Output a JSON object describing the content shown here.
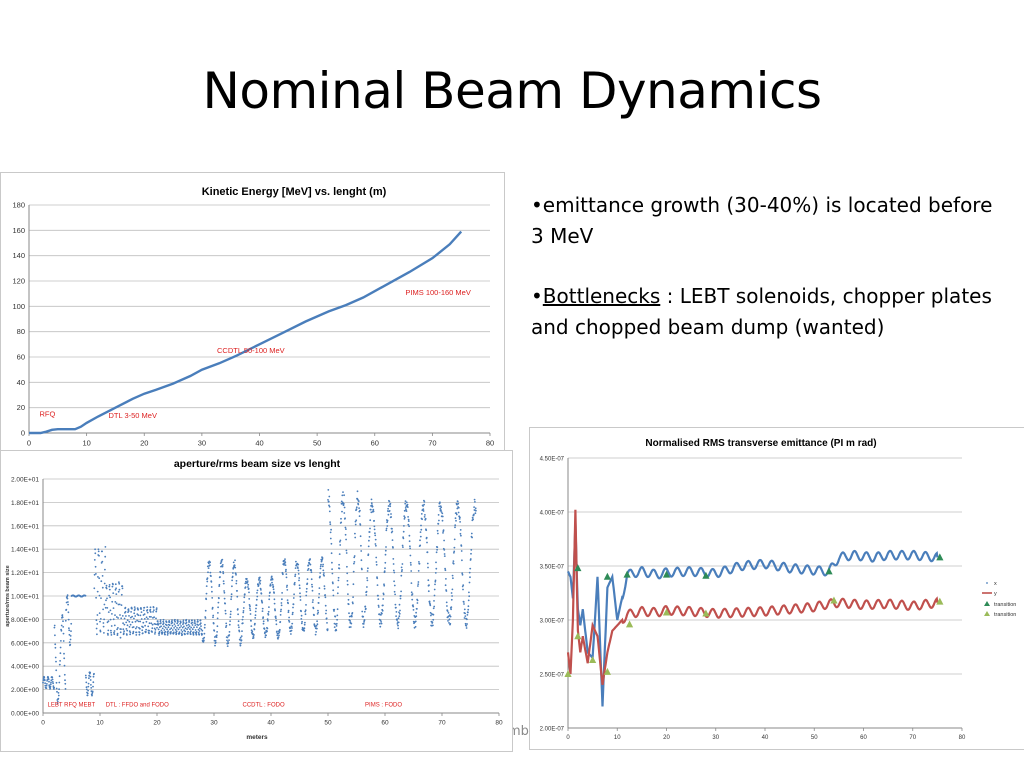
{
  "slide": {
    "title": "Nominal Beam Dynamics",
    "bullet1": "•emittance growth (30-40%) is  located before 3 MeV",
    "bullet2_prefix": "•",
    "bullet2_link": "Bottlenecks",
    "bullet2_rest": " : LEBT solenoids, chopper plates and chopped beam dump (wanted)",
    "footer_fragment": "mb"
  },
  "chart_data": [
    {
      "id": "energy",
      "type": "line",
      "title": "Kinetic Energy [MeV] vs. lenght (m)",
      "xlabel": "",
      "ylabel": "",
      "xlim": [
        0,
        80
      ],
      "ylim": [
        0,
        180
      ],
      "xticks": [
        0,
        10,
        20,
        30,
        40,
        50,
        60,
        70,
        80
      ],
      "yticks": [
        0,
        20,
        40,
        60,
        80,
        100,
        120,
        140,
        160,
        180
      ],
      "grid": "horizontal",
      "color": "#4a7ebb",
      "series": [
        {
          "x": [
            0,
            2,
            3,
            4,
            5,
            6,
            7,
            8,
            9,
            10,
            12,
            15,
            18,
            20,
            22,
            25,
            28,
            30,
            33,
            36,
            40,
            44,
            48,
            52,
            55,
            58,
            62,
            66,
            70,
            73,
            75
          ],
          "y": [
            0,
            0,
            1,
            2.5,
            3,
            3,
            3,
            3,
            5,
            8,
            13,
            20,
            27,
            31,
            34,
            39,
            45,
            50,
            55,
            61,
            70,
            79,
            88,
            96,
            101,
            107,
            117,
            127,
            138,
            149,
            159
          ]
        }
      ],
      "annotations": [
        {
          "text": "RFQ",
          "x": 3.2,
          "y": 13
        },
        {
          "text": "DTL 3-50 MeV",
          "x": 18,
          "y": 12
        },
        {
          "text": "CCDTL 50-100 MeV",
          "x": 38.5,
          "y": 63
        },
        {
          "text": "PIMS 100-160 MeV",
          "x": 71,
          "y": 109
        }
      ]
    },
    {
      "id": "aperture",
      "type": "scatter",
      "title": "aperture/rms beam size vs lenght",
      "xlabel": "meters",
      "ylabel": "aperture/rms beam size",
      "xlim": [
        0,
        80
      ],
      "ylim": [
        0,
        20
      ],
      "xticks": [
        0,
        10,
        20,
        30,
        40,
        50,
        60,
        70,
        80
      ],
      "yticks": [
        "0.00E+00",
        "2.00E+00",
        "4.00E+00",
        "6.00E+00",
        "8.00E+00",
        "1.00E+01",
        "1.20E+01",
        "1.40E+01",
        "1.60E+01",
        "1.80E+01",
        "2.00E+01"
      ],
      "grid": "horizontal",
      "color": "#4a7ebb",
      "segments": [
        {
          "x0": 0,
          "x1": 2,
          "base": 2.6,
          "amp": 0.5,
          "period": 0.7
        },
        {
          "x0": 2,
          "x1": 4,
          "base": 4.5,
          "amp": 3.5,
          "period": 1.5
        },
        {
          "x0": 4,
          "x1": 5,
          "base": 8,
          "amp": 2,
          "period": 1.0
        },
        {
          "x0": 5,
          "x1": 7.5,
          "base": 10,
          "amp": 0.05,
          "period": 1.0
        },
        {
          "x0": 7.5,
          "x1": 9,
          "base": 2.5,
          "amp": 1.0,
          "period": 0.8
        },
        {
          "x0": 9,
          "x1": 11,
          "base": 10.5,
          "amp": 3.5,
          "period": 0.6
        },
        {
          "x0": 11,
          "x1": 14,
          "base": 8.8,
          "amp": 2.2,
          "period": 0.55
        },
        {
          "x0": 14,
          "x1": 20,
          "base": 7.9,
          "amp": 1.1,
          "period": 0.55
        },
        {
          "x0": 20,
          "x1": 28,
          "base": 7.3,
          "amp": 0.6,
          "period": 0.5
        },
        {
          "x0": 28,
          "x1": 35,
          "base": 9.5,
          "amp": 3.4,
          "period": 2.2
        },
        {
          "x0": 35,
          "x1": 42,
          "base": 9.0,
          "amp": 2.4,
          "period": 2.2
        },
        {
          "x0": 42,
          "x1": 50,
          "base": 10.0,
          "amp": 3.0,
          "period": 2.2
        },
        {
          "x0": 50,
          "x1": 56,
          "base": 13.0,
          "amp": 5.5,
          "period": 2.6
        },
        {
          "x0": 56,
          "x1": 76,
          "base": 12.8,
          "amp": 5.0,
          "period": 3.0
        }
      ],
      "annotations": [
        {
          "text": "LEBT RFQ MEBT",
          "x": 0.8,
          "y": 0.4
        },
        {
          "text": "DTL : FFDO and FODO",
          "x": 11,
          "y": 0.4
        },
        {
          "text": "CCDTL : FODO",
          "x": 35,
          "y": 0.4
        },
        {
          "text": "PIMS : FODO",
          "x": 56.5,
          "y": 0.4
        }
      ]
    },
    {
      "id": "emittance",
      "type": "line",
      "title": "Normalised RMS transverse emittance (PI m rad)",
      "xlabel": "",
      "ylabel": "",
      "xlim": [
        0,
        80
      ],
      "ylim": [
        2e-07,
        4.5e-07
      ],
      "xticks": [
        0,
        10,
        20,
        30,
        40,
        50,
        60,
        70,
        80
      ],
      "yticks": [
        "2.00E-07",
        "2.50E-07",
        "3.00E-07",
        "3.50E-07",
        "4.00E-07",
        "4.50E-07"
      ],
      "grid": "horizontal",
      "legend_position": "right",
      "series": [
        {
          "name": "x",
          "color": "#4a7ebb",
          "x": [
            0,
            0.5,
            1,
            1.5,
            2,
            2.5,
            3,
            4,
            5,
            6,
            7,
            8,
            9,
            10,
            12,
            15,
            18,
            20,
            25,
            30,
            35,
            40,
            45,
            50,
            53,
            55,
            58,
            62,
            65,
            70,
            75
          ],
          "y": [
            3.45e-07,
            3.4e-07,
            3.2e-07,
            3.9e-07,
            3.1e-07,
            2.95e-07,
            3.1e-07,
            2.7e-07,
            2.65e-07,
            3.4e-07,
            2.2e-07,
            3.3e-07,
            3.4e-07,
            3e-07,
            3.42e-07,
            3.45e-07,
            3.42e-07,
            3.44e-07,
            3.45e-07,
            3.43e-07,
            3.5e-07,
            3.52e-07,
            3.48e-07,
            3.46e-07,
            3.45e-07,
            3.58e-07,
            3.6e-07,
            3.58e-07,
            3.6e-07,
            3.6e-07,
            3.58e-07
          ],
          "osc_amp": 4e-09,
          "osc_period": 2.4
        },
        {
          "name": "y",
          "color": "#c0504d",
          "x": [
            0,
            0.5,
            1,
            1.5,
            2,
            2.5,
            3,
            4,
            5,
            6,
            7,
            8,
            9,
            10,
            12,
            15,
            18,
            20,
            25,
            30,
            35,
            40,
            45,
            50,
            53,
            55,
            60,
            65,
            70,
            75
          ],
          "y": [
            2.7e-07,
            2.5e-07,
            3e-07,
            4.02e-07,
            2.9e-07,
            2.7e-07,
            2.85e-07,
            2.6e-07,
            2.95e-07,
            2.85e-07,
            2.4e-07,
            2.7e-07,
            2.9e-07,
            2.95e-07,
            3.05e-07,
            3.08e-07,
            3.07e-07,
            3.09e-07,
            3.08e-07,
            3.06e-07,
            3.07e-07,
            3.08e-07,
            3.1e-07,
            3.12e-07,
            3.15e-07,
            3.16e-07,
            3.14e-07,
            3.15e-07,
            3.13e-07,
            3.16e-07
          ],
          "osc_amp": 4e-09,
          "osc_period": 2.4
        }
      ],
      "markers": [
        {
          "name": "transition",
          "color": "#2e8b57",
          "points": [
            [
              2,
              3.48e-07
            ],
            [
              8,
              3.4e-07
            ],
            [
              12,
              3.42e-07
            ],
            [
              20,
              3.42e-07
            ],
            [
              28,
              3.41e-07
            ],
            [
              53,
              3.45e-07
            ],
            [
              75.5,
              3.58e-07
            ]
          ]
        },
        {
          "name": "transition",
          "color": "#9bbb59",
          "points": [
            [
              0,
              2.5e-07
            ],
            [
              2,
              2.85e-07
            ],
            [
              5,
              2.63e-07
            ],
            [
              8,
              2.52e-07
            ],
            [
              12.5,
              2.96e-07
            ],
            [
              20,
              3.07e-07
            ],
            [
              28,
              3.06e-07
            ],
            [
              54,
              3.18e-07
            ],
            [
              75.5,
              3.17e-07
            ]
          ]
        }
      ]
    }
  ]
}
